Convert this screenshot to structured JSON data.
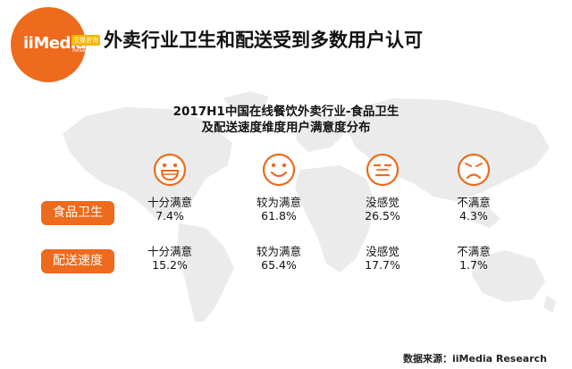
{
  "header": {
    "logo_text": "iiMedia",
    "logo_badge": "艾媒咨询",
    "logo_sub": "Research",
    "title": "外卖行业卫生和配送受到多数用户认可"
  },
  "chart_data": {
    "type": "table",
    "title_line1": "2017H1中国在线餐饮外卖行业-食品卫生",
    "title_line2": "及配送速度维度用户满意度分布",
    "categories": [
      "十分满意",
      "较为满意",
      "没感觉",
      "不满意"
    ],
    "icons": [
      "big-smile-face-icon",
      "smile-face-icon",
      "neutral-face-icon",
      "frown-face-icon"
    ],
    "series": [
      {
        "name": "食品卫生",
        "values": [
          "7.4%",
          "61.8%",
          "26.5%",
          "4.3%"
        ]
      },
      {
        "name": "配送速度",
        "values": [
          "15.2%",
          "65.4%",
          "17.7%",
          "1.7%"
        ]
      }
    ]
  },
  "footer": {
    "source": "数据来源：iiMedia Research"
  },
  "colors": {
    "accent": "#ee6a1c",
    "map": "#ebebeb"
  }
}
